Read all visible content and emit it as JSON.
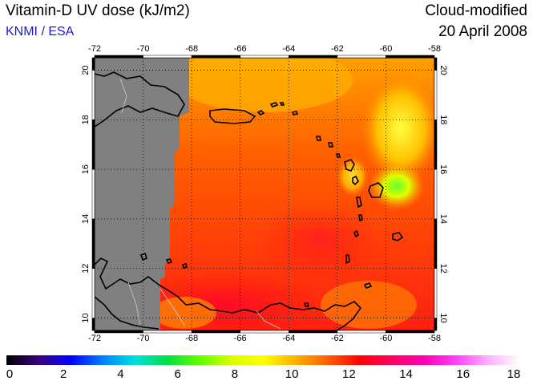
{
  "header": {
    "title": "Vitamin-D UV dose (kJ/m2)",
    "org": "KNMI / ESA",
    "mode": "Cloud-modified",
    "date": "20 April 2008"
  },
  "map": {
    "lon_ticks": [
      -72,
      -70,
      -68,
      -66,
      -64,
      -62,
      -60,
      -58
    ],
    "lat_ticks": [
      10,
      12,
      14,
      16,
      18,
      20
    ],
    "lon_range": [
      -72,
      -58
    ],
    "lat_range": [
      9.5,
      20.5
    ],
    "grid": "dotted",
    "no_data_color": "#808080"
  },
  "colorbar": {
    "ticks": [
      "0",
      "2",
      "4",
      "6",
      "8",
      "10",
      "12",
      "14",
      "16",
      "18"
    ],
    "colors": [
      "#000000",
      "#3a0080",
      "#0000ff",
      "#0080ff",
      "#00e0e0",
      "#00e040",
      "#60ff00",
      "#d8ff00",
      "#ffff00",
      "#ffb000",
      "#ff6000",
      "#ff0000",
      "#ff0060",
      "#ff00b0",
      "#ff40ff",
      "#ffb0ff",
      "#ffffff"
    ]
  }
}
